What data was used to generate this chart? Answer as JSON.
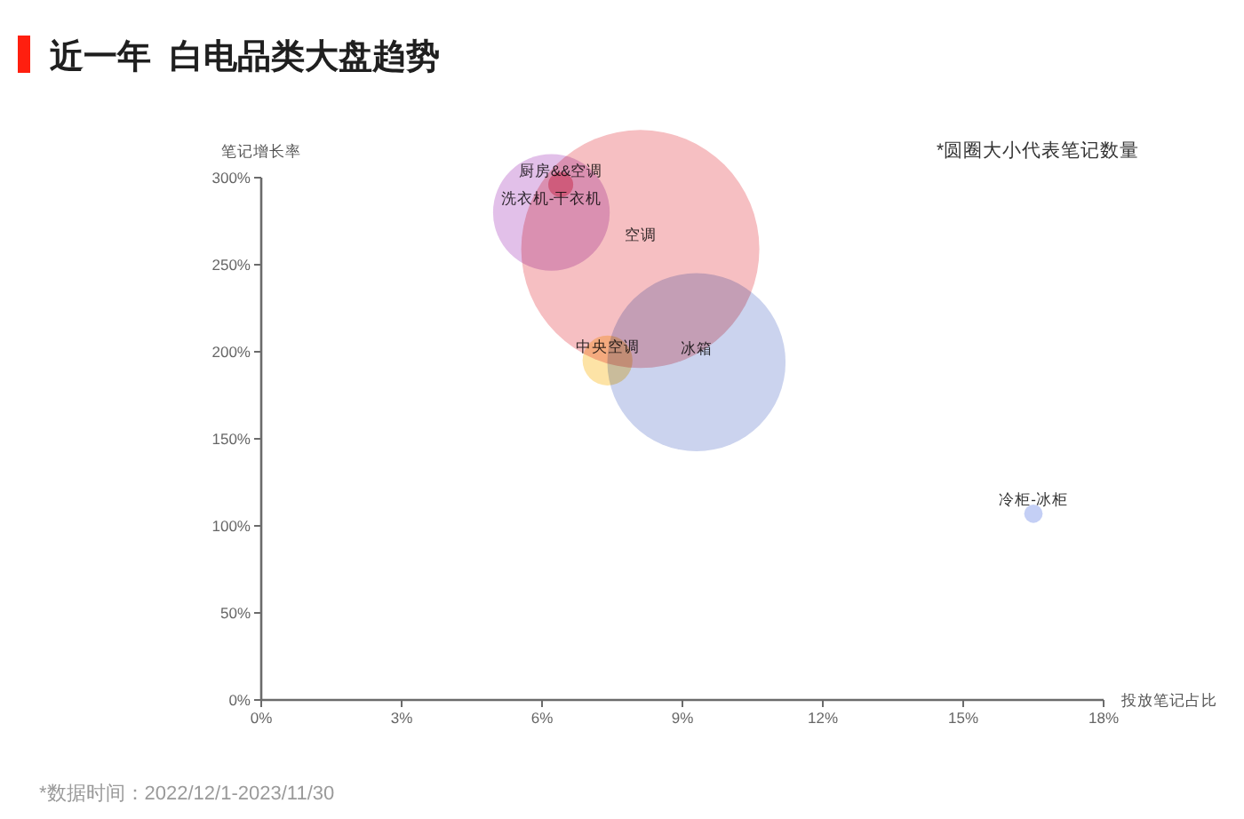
{
  "chart_data": {
    "type": "bubble",
    "title": "近一年  白电品类大盘趋势",
    "xlabel": "投放笔记占比",
    "ylabel": "笔记增长率",
    "annotations": [
      "*圆圈大小代表笔记数量",
      "*数据时间：2022/12/1-2023/11/30"
    ],
    "series": [
      {
        "name": "空调",
        "color": "#f6bfc2",
        "x": [
          8.1
        ],
        "values": [
          259
        ],
        "sizes": [
          1
        ]
      },
      {
        "name": "冰箱",
        "color": "#cbd3ee",
        "x": [
          9.3
        ],
        "values": [
          194
        ],
        "sizes": [
          0.56
        ]
      },
      {
        "name": "洗衣机-干衣机",
        "color": "#e2c0e9",
        "x": [
          6.2
        ],
        "values": [
          280
        ],
        "sizes": [
          0.24
        ]
      },
      {
        "name": "中央空调",
        "color": "#fde3a6",
        "x": [
          7.4
        ],
        "values": [
          195
        ],
        "sizes": [
          0.044
        ]
      },
      {
        "name": "厨房&&空调",
        "color": "#f3a3b3",
        "x": [
          6.4
        ],
        "values": [
          296
        ],
        "sizes": [
          0.011
        ]
      },
      {
        "name": "冷柜-冰柜",
        "color": "#c4cff5",
        "x": [
          16.5
        ],
        "values": [
          107
        ],
        "sizes": [
          0.006
        ]
      }
    ],
    "xlim": [
      0,
      18
    ],
    "xticks": [
      {
        "value": 0,
        "label": "0%"
      },
      {
        "value": 3,
        "label": "3%"
      },
      {
        "value": 6,
        "label": "6%"
      },
      {
        "value": 9,
        "label": "9%"
      },
      {
        "value": 12,
        "label": "12%"
      },
      {
        "value": 15,
        "label": "15%"
      },
      {
        "value": 18,
        "label": "18%"
      }
    ],
    "ylim": [
      0,
      300
    ],
    "yticks": [
      {
        "value": 0,
        "label": "0%"
      },
      {
        "value": 50,
        "label": "50%"
      },
      {
        "value": 100,
        "label": "100%"
      },
      {
        "value": 150,
        "label": "150%"
      },
      {
        "value": 200,
        "label": "200%"
      },
      {
        "value": 250,
        "label": "250%"
      },
      {
        "value": 300,
        "label": "300%"
      }
    ]
  }
}
